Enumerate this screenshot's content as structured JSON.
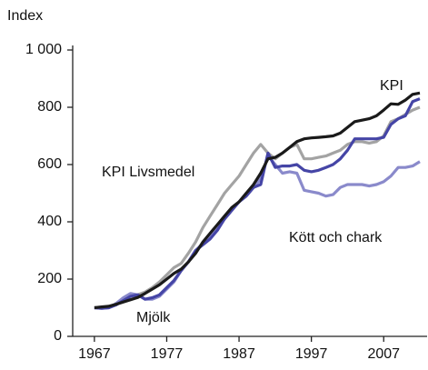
{
  "chart_data": {
    "type": "line",
    "y_label": "Index",
    "x": [
      1967,
      1968,
      1969,
      1970,
      1971,
      1972,
      1973,
      1974,
      1975,
      1976,
      1977,
      1978,
      1979,
      1980,
      1981,
      1982,
      1983,
      1984,
      1985,
      1986,
      1987,
      1988,
      1989,
      1990,
      1991,
      1992,
      1993,
      1994,
      1995,
      1996,
      1997,
      1998,
      1999,
      2000,
      2001,
      2002,
      2003,
      2004,
      2005,
      2006,
      2007,
      2008,
      2009,
      2010,
      2011,
      2012
    ],
    "series": [
      {
        "name": "KPI Livsmedel",
        "color": "#a3a3a3",
        "values": [
          100,
          100,
          105,
          112,
          125,
          140,
          145,
          155,
          170,
          190,
          215,
          240,
          255,
          290,
          330,
          380,
          420,
          460,
          500,
          530,
          560,
          600,
          640,
          670,
          640,
          620,
          640,
          660,
          670,
          620,
          620,
          625,
          630,
          640,
          650,
          670,
          680,
          680,
          675,
          680,
          700,
          750,
          760,
          775,
          790,
          800
        ]
      },
      {
        "name": "Kött och chark",
        "color": "#8a8acb",
        "values": [
          100,
          98,
          100,
          115,
          135,
          150,
          145,
          130,
          130,
          140,
          165,
          190,
          230,
          260,
          300,
          325,
          350,
          380,
          410,
          440,
          470,
          500,
          520,
          550,
          630,
          600,
          570,
          575,
          570,
          510,
          505,
          500,
          490,
          495,
          520,
          530,
          530,
          530,
          525,
          530,
          540,
          560,
          590,
          590,
          595,
          610
        ]
      },
      {
        "name": "Mjölk",
        "color": "#4545a6",
        "values": [
          100,
          98,
          100,
          110,
          125,
          140,
          145,
          130,
          135,
          145,
          170,
          195,
          230,
          260,
          300,
          320,
          340,
          370,
          410,
          440,
          470,
          490,
          520,
          530,
          640,
          590,
          595,
          595,
          600,
          580,
          575,
          580,
          590,
          600,
          620,
          650,
          690,
          690,
          690,
          690,
          695,
          740,
          760,
          770,
          820,
          830
        ]
      },
      {
        "name": "KPI",
        "color": "#1a1a1a",
        "values": [
          100,
          103,
          105,
          112,
          120,
          128,
          136,
          150,
          165,
          180,
          200,
          220,
          235,
          260,
          290,
          330,
          360,
          390,
          420,
          450,
          470,
          500,
          530,
          570,
          620,
          625,
          640,
          660,
          680,
          690,
          693,
          695,
          697,
          700,
          710,
          730,
          750,
          755,
          760,
          770,
          790,
          812,
          810,
          825,
          845,
          850
        ]
      }
    ],
    "xlim": [
      1964,
      2013
    ],
    "xticks": [
      1967,
      1977,
      1987,
      1997,
      2007
    ],
    "ylim": [
      0,
      1000
    ],
    "yticks": [
      0,
      200,
      400,
      600,
      800,
      {
        "value": 1000,
        "label": "1 000"
      }
    ],
    "grid": false
  }
}
